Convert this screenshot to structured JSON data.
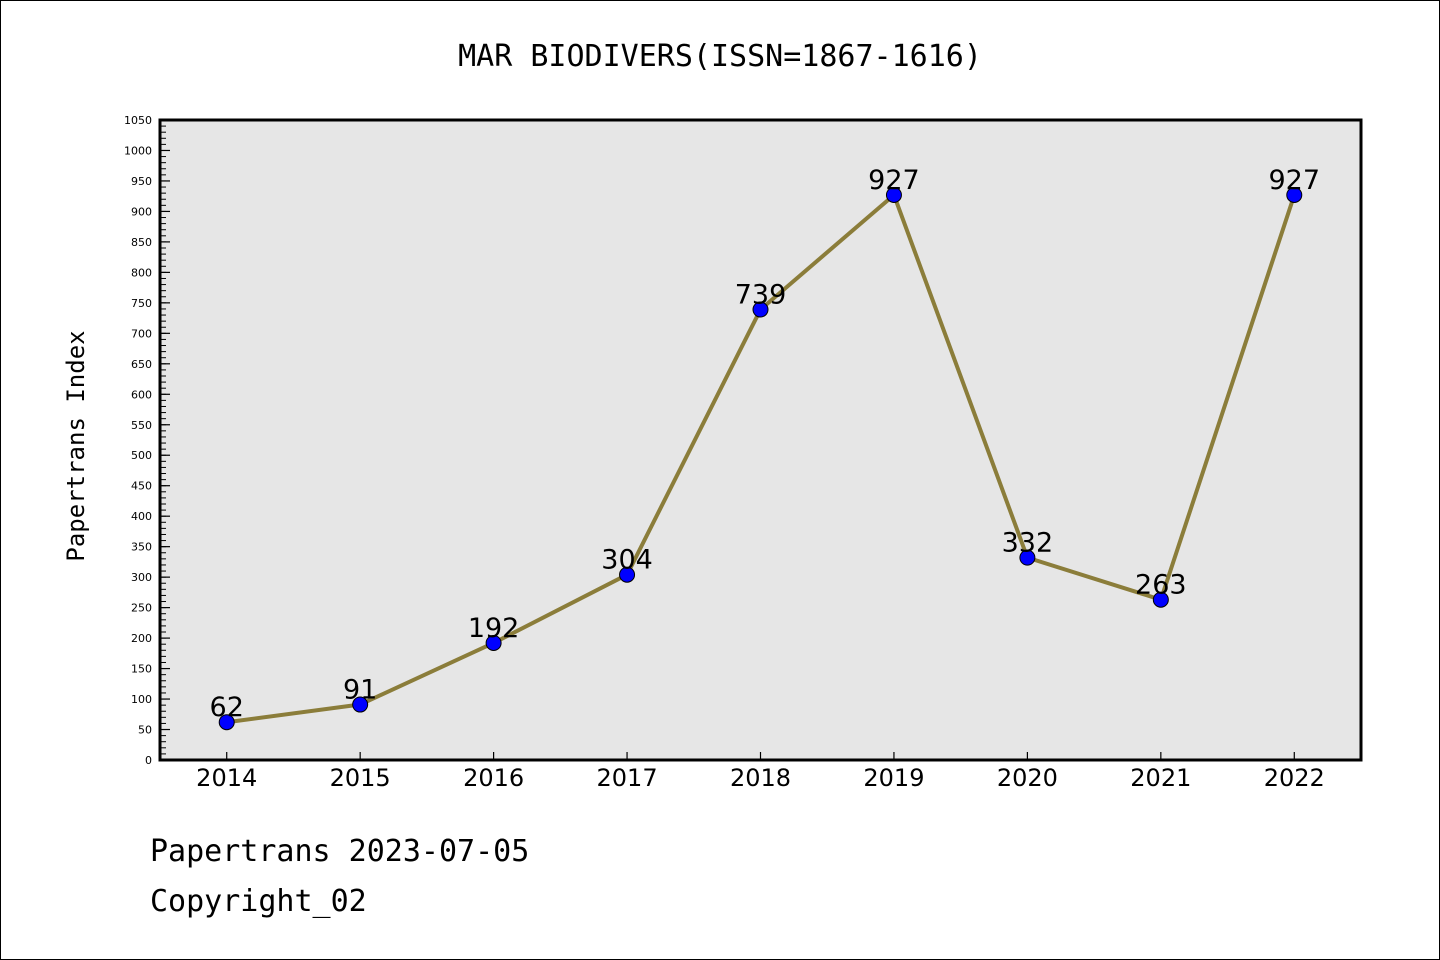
{
  "chart_data": {
    "type": "line",
    "title": "MAR BIODIVERS(ISSN=1867-1616)",
    "ylabel": "Papertrans Index",
    "xlabel": "",
    "categories": [
      "2014",
      "2015",
      "2016",
      "2017",
      "2018",
      "2019",
      "2020",
      "2021",
      "2022"
    ],
    "series": [
      {
        "values": [
          62,
          91,
          192,
          304,
          739,
          927,
          332,
          263,
          927
        ]
      }
    ],
    "data_labels": [
      "62",
      "91",
      "192",
      "304",
      "739",
      "927",
      "332",
      "263",
      "927"
    ],
    "ylim": [
      0,
      1050
    ],
    "ytick_step": 50,
    "yticks": [
      "0",
      "50",
      "100",
      "150",
      "200",
      "250",
      "300",
      "350",
      "400",
      "450",
      "500",
      "550",
      "600",
      "650",
      "700",
      "750",
      "800",
      "850",
      "900",
      "950",
      "1000",
      "1050"
    ],
    "grid": false,
    "legend": "none",
    "colors": {
      "line": "#8b7d3a",
      "marker": "#0000ff",
      "plot_background": "#e6e6e6",
      "frame": "#000000"
    }
  },
  "footer": {
    "line1": "Papertrans 2023-07-05",
    "line2": "Copyright_02"
  }
}
